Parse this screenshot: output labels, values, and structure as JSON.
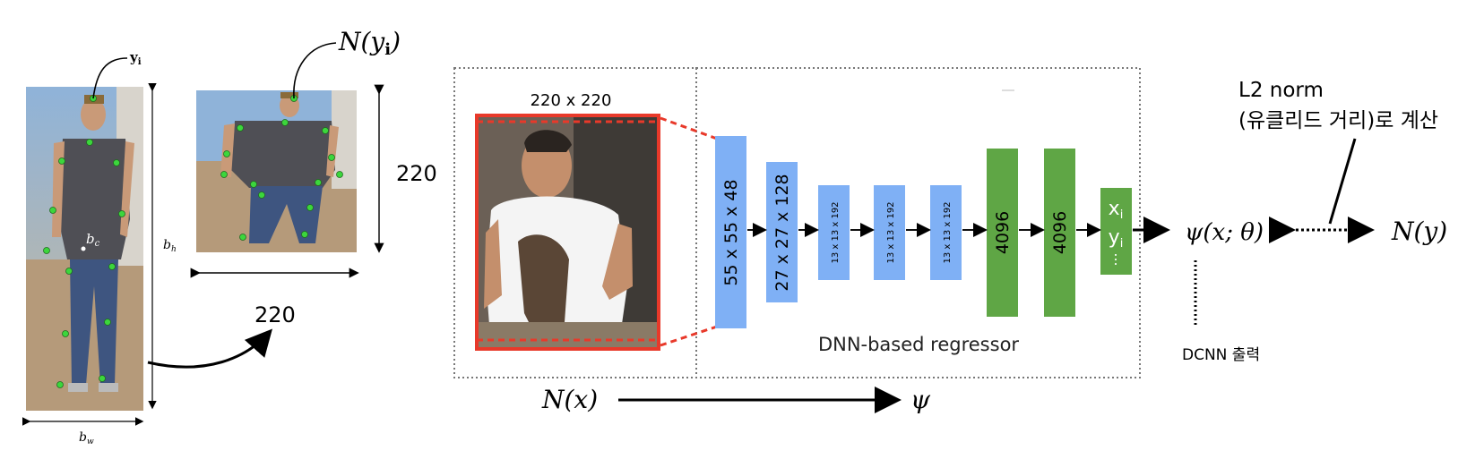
{
  "left_figure": {
    "yi_label": "y",
    "yi_sub": "i",
    "bc_label": "b",
    "bc_sub": "c",
    "bh_label": "b",
    "bh_sub": "h",
    "bw_label": "b",
    "bw_sub": "w",
    "crop_label": "N(y",
    "crop_label_sub": "i",
    "crop_label_close": ")",
    "crop_height": "220",
    "crop_width": "220"
  },
  "network": {
    "input_size_label": "220 x 220",
    "layers": [
      {
        "label": "55 x 55 x 48",
        "color": "#7fb0f5"
      },
      {
        "label": "27 x 27 x 128",
        "color": "#7fb0f5"
      },
      {
        "label": "13 x 13 x 192",
        "color": "#7fb0f5"
      },
      {
        "label": "13 x 13 x 192",
        "color": "#7fb0f5"
      },
      {
        "label": "13 x 13 x 192",
        "color": "#7fb0f5"
      },
      {
        "label": "4096",
        "color": "#5fa645"
      },
      {
        "label": "4096",
        "color": "#5fa645"
      }
    ],
    "output_x": "x",
    "output_x_sub": "i",
    "output_y": "y",
    "output_y_sub": "i",
    "output_dots": "...",
    "regressor_label": "DNN-based regressor",
    "nx_label": "N(x)",
    "psi_label": "ψ"
  },
  "right_side": {
    "psi_expr": "ψ(x; θ)",
    "ny_label": "N(y)",
    "l2_line1": "L2 norm",
    "l2_line2": "(유클리드 거리)로 계산",
    "dcnn_label": "DCNN 출력"
  },
  "colors": {
    "red_crop": "#e8392a",
    "blue_layer": "#7fb0f5",
    "green_layer": "#5fa645",
    "keypoint": "#3cd63c"
  }
}
